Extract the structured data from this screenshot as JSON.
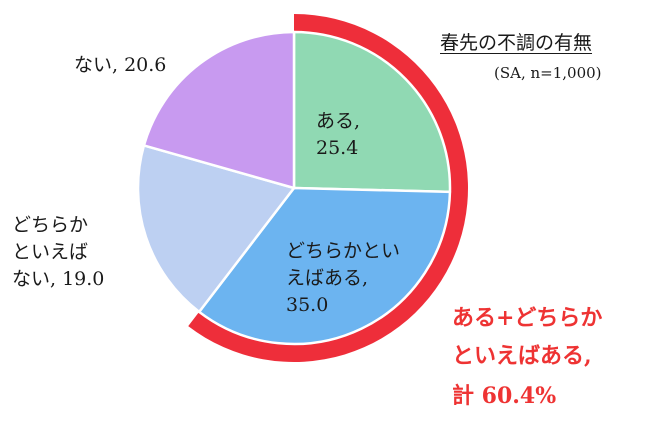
{
  "chart_data": {
    "type": "pie",
    "title": "春先の不調の有無",
    "subtitle": "(SA, n=1,000)",
    "slices": [
      {
        "name": "ある",
        "value": 25.4,
        "color": "#90d9b3",
        "label_lines": [
          "ある,",
          "25.4"
        ]
      },
      {
        "name": "どちらかといえばある",
        "value": 35.0,
        "color": "#6cb4f0",
        "label_lines": [
          "どちらかとい",
          "えばある,",
          "35.0"
        ]
      },
      {
        "name": "どちらかといえばない",
        "value": 19.0,
        "color": "#bdd0f2",
        "label_lines": [
          "どちらか",
          "といえば",
          "ない, 19.0"
        ]
      },
      {
        "name": "ない",
        "value": 20.6,
        "color": "#c89af0",
        "label_lines": [
          "ない, 20.6"
        ]
      }
    ],
    "highlight": {
      "lines": [
        "ある+どちらか",
        "といえばある,",
        "計 60.4%"
      ],
      "value": 60.4,
      "color": "#ee2e3a"
    }
  }
}
